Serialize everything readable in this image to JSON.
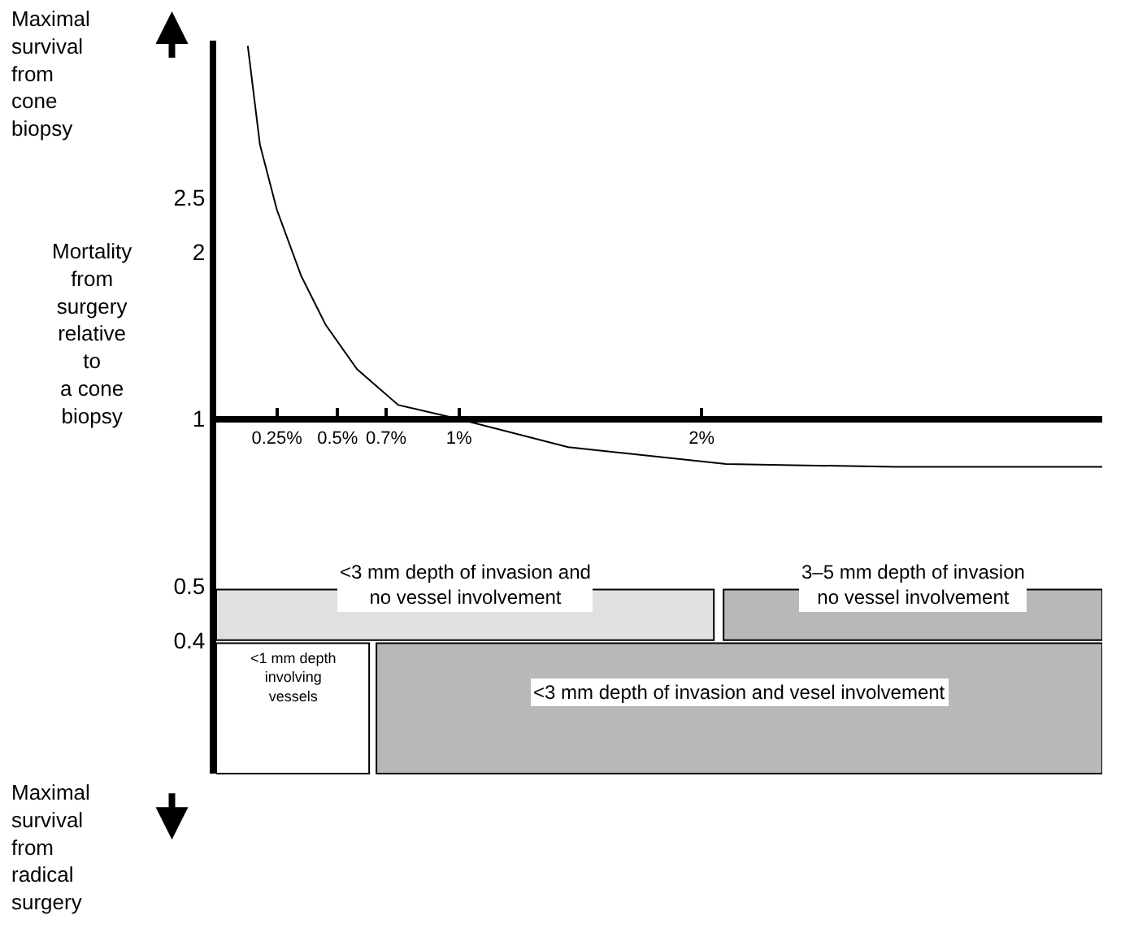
{
  "chart_data": {
    "type": "line",
    "ylabel": "Mortality\nfrom\nsurgery\nrelative\nto\na cone\nbiopsy",
    "annotations": [
      "Maximal\nsurvival\nfrom\ncone\nbiopsy",
      "Maximal\nsurvival\nfrom\nradical\nsurgery"
    ],
    "x": [
      0.13,
      0.18,
      0.25,
      0.35,
      0.45,
      0.58,
      0.75,
      1.0,
      1.45,
      2.1,
      2.8,
      3.65
    ],
    "series": [
      {
        "color": "#000000",
        "values": [
          4.7,
          3.12,
          2.38,
          1.81,
          1.48,
          1.23,
          1.06,
          1.0,
          0.89,
          0.83,
          0.82,
          0.82
        ]
      }
    ],
    "log": "y",
    "xlim": [
      0,
      3.65
    ],
    "ylim": [
      0.23,
      4.8
    ],
    "xticks": [
      {
        "value": 0.25,
        "label": "0.25%"
      },
      {
        "value": 0.5,
        "label": "0.5%"
      },
      {
        "value": 0.7,
        "label": "0.7%"
      },
      {
        "value": 1,
        "label": "1%"
      },
      {
        "value": 2,
        "label": "2%"
      }
    ],
    "yticks": [
      0.4,
      0.5,
      1,
      2,
      2.5
    ],
    "bands": [
      {
        "axis": "x",
        "from": 0,
        "to": 2.05,
        "label": "<3 mm depth of invasion and\nno vessel involvement",
        "color": "#e0e0e0"
      },
      {
        "axis": "x",
        "from": 2.09,
        "to": 3.65,
        "label": "3–5 mm depth of invasion\nno vessel involvement",
        "color": "#b8b8b8"
      },
      {
        "axis": "x",
        "from": 0,
        "to": 0.63,
        "label": "<1 mm depth\ninvolving\nvessels",
        "color": "#ffffff"
      },
      {
        "axis": "x",
        "from": 0.66,
        "to": 3.65,
        "label": "<3 mm depth of invasion and vesel involvement",
        "color": "#b8b8b8"
      }
    ],
    "legend": false,
    "marker": "none",
    "line_style": "solid"
  }
}
